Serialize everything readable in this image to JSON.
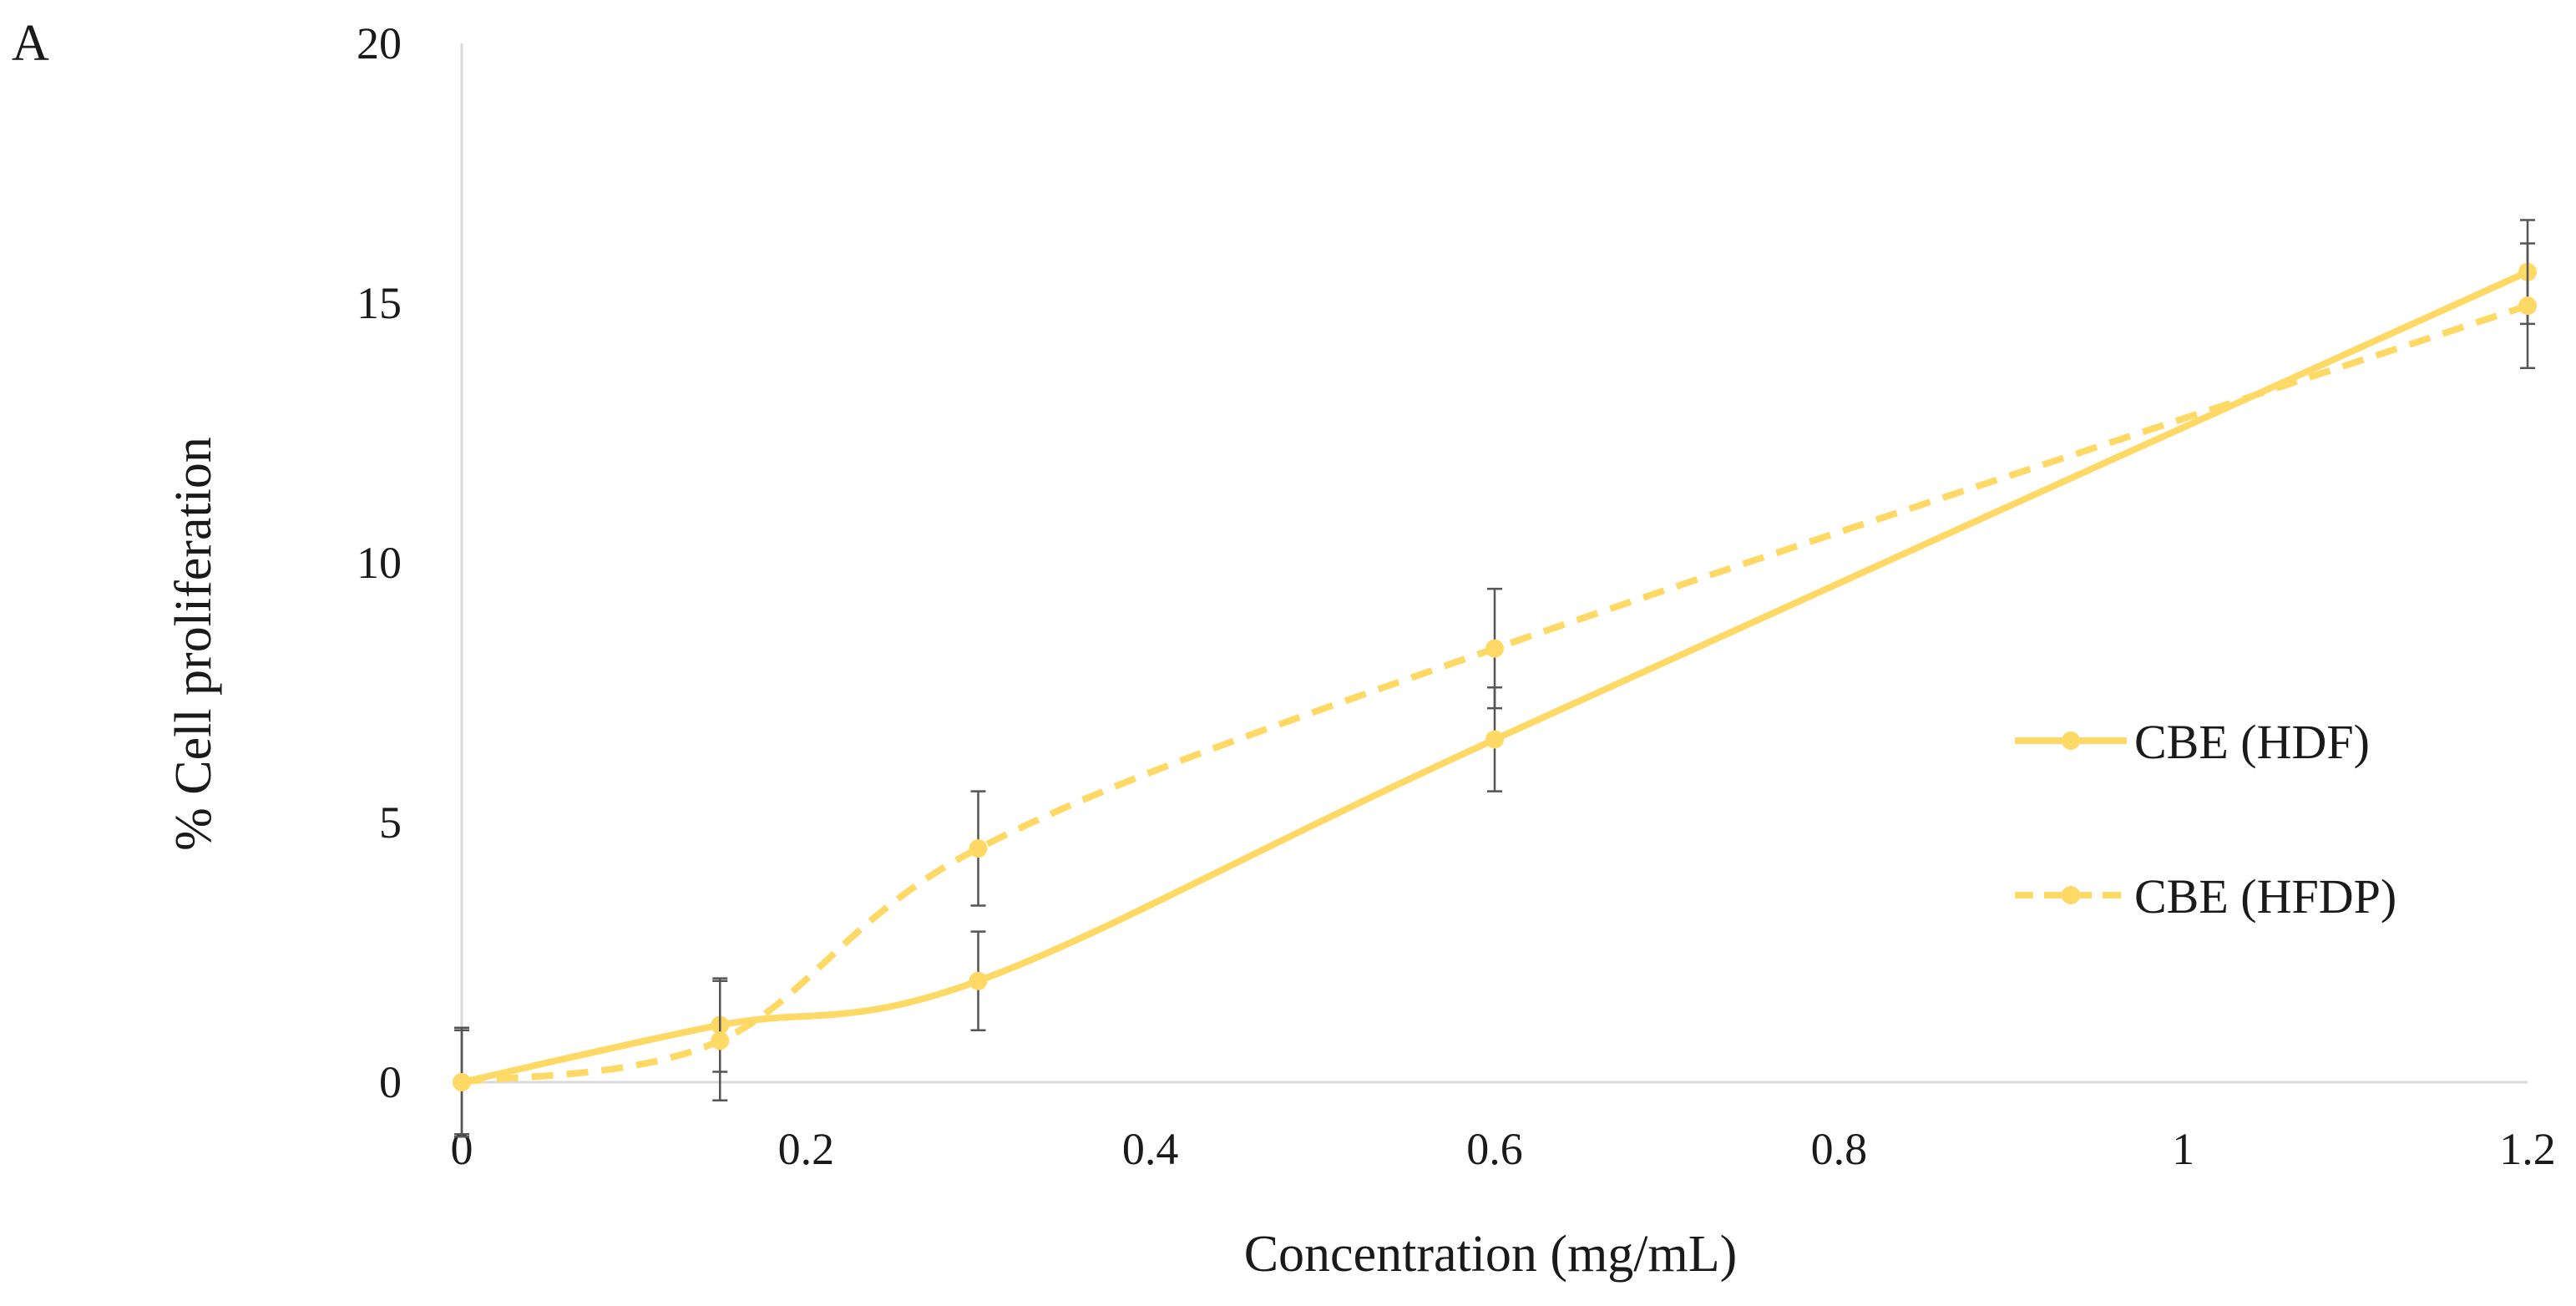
{
  "panel_label": "A",
  "chart_data": {
    "type": "line",
    "title": "",
    "xlabel": "Concentration (mg/mL)",
    "ylabel": "% Cell proliferation",
    "xlim": [
      0,
      1.2
    ],
    "ylim": [
      0,
      20
    ],
    "x_ticks": [
      0,
      0.2,
      0.4,
      0.6,
      0.8,
      1,
      1.2
    ],
    "x_tick_labels": [
      "0",
      "0.2",
      "0.4",
      "0.6",
      "0.8",
      "1",
      "1.2"
    ],
    "y_ticks": [
      0,
      5,
      10,
      15,
      20
    ],
    "y_tick_labels": [
      "0",
      "5",
      "10",
      "15",
      "20"
    ],
    "grid": false,
    "legend_position": "right",
    "series": [
      {
        "name": "CBE (HDF)",
        "line_style": "solid",
        "color": "#FFD966",
        "x": [
          0,
          0.15,
          0.3,
          0.6,
          1.2
        ],
        "values": [
          0,
          1.1,
          1.95,
          6.6,
          15.6
        ],
        "error": [
          1.0,
          0.9,
          0.95,
          1.0,
          1.0
        ]
      },
      {
        "name": "CBE (HFDP)",
        "line_style": "dashed",
        "color": "#FFD966",
        "x": [
          0,
          0.15,
          0.3,
          0.6,
          1.2
        ],
        "values": [
          0,
          0.8,
          4.5,
          8.35,
          14.95
        ],
        "error": [
          1.05,
          1.15,
          1.1,
          1.15,
          1.2
        ]
      }
    ]
  }
}
